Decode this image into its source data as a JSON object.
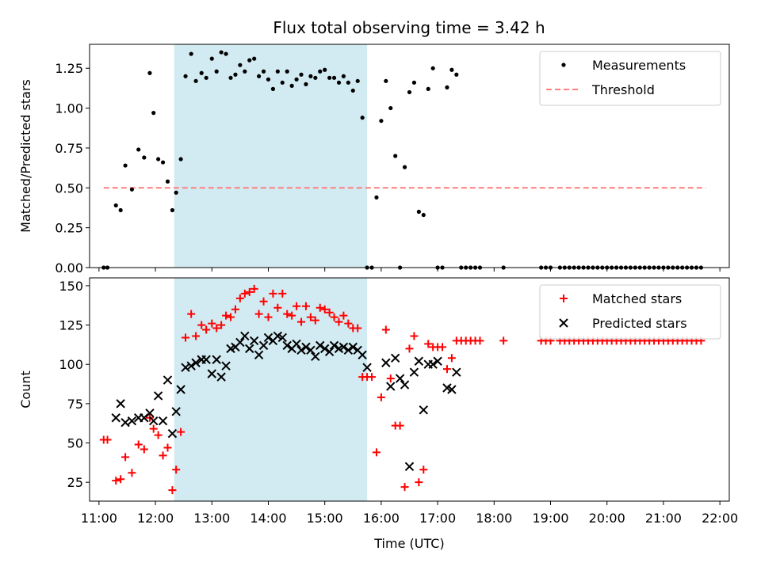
{
  "title": "Flux total observing time = 3.42 h",
  "colors": {
    "measurement": "#000000",
    "threshold": "#ff7f7f",
    "shade": "#add8e6",
    "matched": "#ff0000",
    "predicted": "#000000"
  },
  "chart_data": [
    {
      "type": "scatter",
      "ylabel": "Matched/Predicted stars",
      "ylim": [
        0,
        1.4
      ],
      "y_ticks": [
        "0.00",
        "0.25",
        "0.50",
        "0.75",
        "1.00",
        "1.25"
      ],
      "y_tick_values": [
        0,
        0.25,
        0.5,
        0.75,
        1.0,
        1.25
      ],
      "xlim": [
        "10:50",
        "22:10"
      ],
      "shaded_range": [
        "12:20",
        "15:45"
      ],
      "legend": {
        "position": "top-right",
        "entries": [
          "Measurements",
          "Threshold"
        ]
      },
      "threshold": {
        "name": "Threshold",
        "value": 0.5,
        "x_range": [
          "11:05",
          "21:45"
        ]
      },
      "series": [
        {
          "name": "Measurements",
          "marker": "dot",
          "x": [
            "11:05",
            "11:09",
            "11:18",
            "11:23",
            "11:28",
            "11:35",
            "11:42",
            "11:48",
            "11:54",
            "11:58",
            "12:03",
            "12:08",
            "12:13",
            "12:18",
            "12:22",
            "12:27",
            "12:32",
            "12:38",
            "12:43",
            "12:49",
            "12:54",
            "13:00",
            "13:05",
            "13:10",
            "13:15",
            "13:20",
            "13:25",
            "13:30",
            "13:35",
            "13:40",
            "13:45",
            "13:50",
            "13:55",
            "14:00",
            "14:05",
            "14:10",
            "14:15",
            "14:20",
            "14:25",
            "14:30",
            "14:35",
            "14:40",
            "14:45",
            "14:50",
            "14:55",
            "15:00",
            "15:05",
            "15:10",
            "15:15",
            "15:20",
            "15:25",
            "15:30",
            "15:35",
            "15:40",
            "15:45",
            "15:50",
            "15:55",
            "16:00",
            "16:05",
            "16:10",
            "16:15",
            "16:20",
            "16:25",
            "16:30",
            "16:35",
            "16:40",
            "16:45",
            "16:50",
            "16:55",
            "17:00",
            "17:05",
            "17:10",
            "17:15",
            "17:20",
            "17:25",
            "17:30",
            "17:35",
            "17:40",
            "17:45",
            "18:10",
            "18:50",
            "18:55",
            "19:00",
            "19:10",
            "19:15",
            "19:20",
            "19:25",
            "19:30",
            "19:35",
            "19:40",
            "19:45",
            "19:50",
            "19:55",
            "20:00",
            "20:05",
            "20:10",
            "20:15",
            "20:20",
            "20:25",
            "20:30",
            "20:35",
            "20:40",
            "20:45",
            "20:50",
            "20:55",
            "21:00",
            "21:05",
            "21:10",
            "21:15",
            "21:20",
            "21:25",
            "21:30",
            "21:35",
            "21:40"
          ],
          "y": [
            0,
            0,
            0.39,
            0.36,
            0.64,
            0.49,
            0.74,
            0.69,
            1.22,
            0.97,
            0.68,
            0.66,
            0.54,
            0.36,
            0.47,
            0.68,
            1.2,
            1.34,
            1.17,
            1.22,
            1.19,
            1.31,
            1.23,
            1.35,
            1.34,
            1.19,
            1.21,
            1.27,
            1.23,
            1.3,
            1.31,
            1.2,
            1.23,
            1.18,
            1.12,
            1.23,
            1.16,
            1.23,
            1.14,
            1.18,
            1.21,
            1.15,
            1.2,
            1.19,
            1.23,
            1.24,
            1.19,
            1.19,
            1.16,
            1.2,
            1.16,
            1.11,
            1.17,
            0.94,
            0,
            0,
            0.44,
            0.92,
            1.17,
            1.0,
            0.7,
            0,
            0.63,
            1.1,
            1.16,
            0.35,
            0.33,
            1.12,
            1.25,
            0,
            0,
            1.13,
            1.24,
            1.21,
            0,
            0,
            0,
            0,
            0,
            0,
            0,
            0,
            0,
            0,
            0,
            0,
            0,
            0,
            0,
            0,
            0,
            0,
            0,
            0,
            0,
            0,
            0,
            0,
            0,
            0,
            0,
            0,
            0,
            0,
            0,
            0,
            0,
            0,
            0,
            0,
            0,
            0,
            0,
            0
          ]
        }
      ]
    },
    {
      "type": "scatter",
      "xlabel": "Time (UTC)",
      "ylabel": "Count",
      "ylim": [
        13,
        155
      ],
      "y_ticks": [
        "25",
        "50",
        "75",
        "100",
        "125",
        "150"
      ],
      "y_tick_values": [
        25,
        50,
        75,
        100,
        125,
        150
      ],
      "x_ticks": [
        "11:00",
        "12:00",
        "13:00",
        "14:00",
        "15:00",
        "16:00",
        "17:00",
        "18:00",
        "19:00",
        "20:00",
        "21:00",
        "22:00"
      ],
      "xlim": [
        "10:50",
        "22:10"
      ],
      "shaded_range": [
        "12:20",
        "15:45"
      ],
      "legend": {
        "position": "top-right",
        "entries": [
          "Matched stars",
          "Predicted stars"
        ]
      },
      "series": [
        {
          "name": "Matched stars",
          "marker": "plus",
          "x": [
            "11:05",
            "11:09",
            "11:18",
            "11:23",
            "11:28",
            "11:35",
            "11:42",
            "11:48",
            "11:54",
            "11:58",
            "12:03",
            "12:08",
            "12:13",
            "12:18",
            "12:22",
            "12:27",
            "12:32",
            "12:38",
            "12:43",
            "12:49",
            "12:54",
            "13:00",
            "13:05",
            "13:10",
            "13:15",
            "13:20",
            "13:25",
            "13:30",
            "13:35",
            "13:40",
            "13:45",
            "13:50",
            "13:55",
            "14:00",
            "14:05",
            "14:10",
            "14:15",
            "14:20",
            "14:25",
            "14:30",
            "14:35",
            "14:40",
            "14:45",
            "14:50",
            "14:55",
            "15:00",
            "15:05",
            "15:10",
            "15:15",
            "15:20",
            "15:25",
            "15:30",
            "15:35",
            "15:40",
            "15:45",
            "15:50",
            "15:55",
            "16:00",
            "16:05",
            "16:10",
            "16:15",
            "16:20",
            "16:25",
            "16:30",
            "16:35",
            "16:40",
            "16:45",
            "16:50",
            "16:55",
            "17:00",
            "17:05",
            "17:10",
            "17:15",
            "17:20",
            "17:25",
            "17:30",
            "17:35",
            "17:40",
            "17:45",
            "18:10",
            "18:50",
            "18:55",
            "19:00",
            "19:10",
            "19:15",
            "19:20",
            "19:25",
            "19:30",
            "19:35",
            "19:40",
            "19:45",
            "19:50",
            "19:55",
            "20:00",
            "20:05",
            "20:10",
            "20:15",
            "20:20",
            "20:25",
            "20:30",
            "20:35",
            "20:40",
            "20:45",
            "20:50",
            "20:55",
            "21:00",
            "21:05",
            "21:10",
            "21:15",
            "21:20",
            "21:25",
            "21:30",
            "21:35",
            "21:40"
          ],
          "y": [
            52,
            52,
            26,
            27,
            41,
            31,
            49,
            46,
            66,
            59,
            55,
            42,
            47,
            20,
            33,
            57,
            117,
            132,
            118,
            125,
            122,
            126,
            123,
            125,
            131,
            130,
            135,
            142,
            145,
            146,
            148,
            132,
            140,
            130,
            145,
            136,
            145,
            132,
            131,
            137,
            127,
            137,
            130,
            128,
            136,
            135,
            133,
            130,
            127,
            131,
            126,
            123,
            123,
            92,
            92,
            92,
            44,
            79,
            122,
            91,
            61,
            61,
            22,
            110,
            118,
            25,
            33,
            113,
            111,
            111,
            111,
            97,
            104,
            115,
            115,
            115,
            115,
            115,
            115,
            115,
            115,
            115,
            115,
            115,
            115,
            115,
            115,
            115,
            115,
            115,
            115,
            115,
            115,
            115,
            115,
            115,
            115,
            115,
            115,
            115,
            115,
            115,
            115,
            115,
            115,
            115,
            115,
            115,
            115,
            115,
            115,
            115,
            115,
            115
          ]
        },
        {
          "name": "Predicted stars",
          "marker": "x",
          "x": [
            "11:18",
            "11:23",
            "11:28",
            "11:35",
            "11:42",
            "11:48",
            "11:54",
            "11:58",
            "12:03",
            "12:08",
            "12:13",
            "12:18",
            "12:22",
            "12:27",
            "12:32",
            "12:38",
            "12:43",
            "12:49",
            "12:54",
            "13:00",
            "13:05",
            "13:10",
            "13:15",
            "13:20",
            "13:25",
            "13:30",
            "13:35",
            "13:40",
            "13:45",
            "13:50",
            "13:55",
            "14:00",
            "14:05",
            "14:10",
            "14:15",
            "14:20",
            "14:25",
            "14:30",
            "14:35",
            "14:40",
            "14:45",
            "14:50",
            "14:55",
            "15:00",
            "15:05",
            "15:10",
            "15:15",
            "15:20",
            "15:25",
            "15:30",
            "15:35",
            "15:40",
            "15:45",
            "16:05",
            "16:10",
            "16:15",
            "16:20",
            "16:25",
            "16:30",
            "16:35",
            "16:40",
            "16:45",
            "16:50",
            "16:55",
            "17:00",
            "17:10",
            "17:15",
            "17:20"
          ],
          "y": [
            66,
            75,
            63,
            64,
            66,
            66,
            69,
            64,
            80,
            64,
            90,
            56,
            70,
            84,
            98,
            99,
            101,
            103,
            103,
            94,
            103,
            92,
            99,
            110,
            111,
            114,
            118,
            110,
            115,
            106,
            112,
            117,
            115,
            118,
            117,
            112,
            110,
            113,
            109,
            111,
            109,
            105,
            112,
            110,
            108,
            112,
            110,
            111,
            109,
            111,
            109,
            106,
            98,
            101,
            86,
            104,
            91,
            87,
            35,
            95,
            102,
            71,
            100,
            100,
            102,
            85,
            84,
            95
          ]
        }
      ]
    }
  ]
}
